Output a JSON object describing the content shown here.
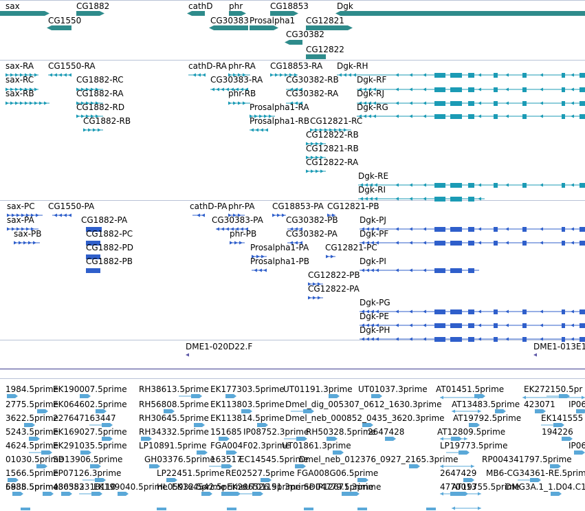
{
  "colors": {
    "gene": "#2e8b8b",
    "rna": "#1b9bb5",
    "protein": "#2f5fcb",
    "est": "#5aa8d8",
    "divider": "#b8c2d6",
    "text": "#000000"
  },
  "genes": [
    {
      "label": "sax"
    },
    {
      "label": "CG1882"
    },
    {
      "label": "cathD"
    },
    {
      "label": "phr"
    },
    {
      "label": "CG18853"
    },
    {
      "label": "Dgk"
    },
    {
      "label": "CG1550"
    },
    {
      "label": "CG30383"
    },
    {
      "label": "Prosalpha1"
    },
    {
      "label": "CG12821"
    },
    {
      "label": "CG30382"
    },
    {
      "label": "CG12822"
    }
  ],
  "transcripts": [
    {
      "label": "sax-RA"
    },
    {
      "label": "CG1550-RA"
    },
    {
      "label": "cathD-RA"
    },
    {
      "label": "phr-RA"
    },
    {
      "label": "CG18853-RA"
    },
    {
      "label": "Dgk-RH"
    },
    {
      "label": "sax-RC"
    },
    {
      "label": "CG1882-RC"
    },
    {
      "label": "CG30383-RA"
    },
    {
      "label": "CG30382-RB"
    },
    {
      "label": "Dgk-RF"
    },
    {
      "label": "sax-RB"
    },
    {
      "label": "CG1882-RA"
    },
    {
      "label": "phr-RB"
    },
    {
      "label": "CG30382-RA"
    },
    {
      "label": "Dgk-RJ"
    },
    {
      "label": "CG1882-RD"
    },
    {
      "label": "Prosalpha1-RA"
    },
    {
      "label": "Dgk-RG"
    },
    {
      "label": "CG1882-RB"
    },
    {
      "label": "Prosalpha1-RB"
    },
    {
      "label": "CG12821-RC"
    },
    {
      "label": "CG12822-RB"
    },
    {
      "label": "CG12821-RB"
    },
    {
      "label": "CG12822-RA"
    },
    {
      "label": "Dgk-RE"
    },
    {
      "label": "Dgk-RI"
    }
  ],
  "proteins": [
    {
      "label": "sax-PC"
    },
    {
      "label": "CG1550-PA"
    },
    {
      "label": "cathD-PA"
    },
    {
      "label": "phr-PA"
    },
    {
      "label": "CG18853-PA"
    },
    {
      "label": "CG12821-PB"
    },
    {
      "label": "sax-PA"
    },
    {
      "label": "CG1882-PA"
    },
    {
      "label": "CG30383-PA"
    },
    {
      "label": "CG30382-PB"
    },
    {
      "label": "Dgk-PJ"
    },
    {
      "label": "sax-PB"
    },
    {
      "label": "CG1882-PC"
    },
    {
      "label": "phr-PB"
    },
    {
      "label": "CG30382-PA"
    },
    {
      "label": "Dgk-PF"
    },
    {
      "label": "CG1882-PD"
    },
    {
      "label": "Prosalpha1-PA"
    },
    {
      "label": "CG12821-PC"
    },
    {
      "label": "CG1882-PB"
    },
    {
      "label": "Prosalpha1-PB"
    },
    {
      "label": "Dgk-PI"
    },
    {
      "label": "CG12822-PB"
    },
    {
      "label": "CG12822-PA"
    },
    {
      "label": "Dgk-PG"
    },
    {
      "label": "Dgk-PE"
    },
    {
      "label": "Dgk-PH"
    }
  ],
  "clones": [
    {
      "label": "DME1-020D22.F"
    },
    {
      "label": "DME1-013E1"
    }
  ],
  "ests": [
    {
      "label": "1984.5prime"
    },
    {
      "label": "EK190007.5prime"
    },
    {
      "label": "RH38613.5prime"
    },
    {
      "label": "EK177303.5prime"
    },
    {
      "label": "UT01191.3prime"
    },
    {
      "label": "UT01037.3prime"
    },
    {
      "label": "AT01451.5prime"
    },
    {
      "label": "EK272150.5pr"
    },
    {
      "label": "2775.5prime"
    },
    {
      "label": "EK064602.5prime"
    },
    {
      "label": "RH56808.5prime"
    },
    {
      "label": "EK113803.5prime"
    },
    {
      "label": "Dmel_dig_005307_0612_1630.3prime"
    },
    {
      "label": "AT13483.5prime"
    },
    {
      "label": "423071"
    },
    {
      "label": "IP06"
    },
    {
      "label": "3622.5prime"
    },
    {
      "label": "227647163447"
    },
    {
      "label": "RH30645.5prime"
    },
    {
      "label": "EK113814.5prime"
    },
    {
      "label": "Dmel_neb_000852_0435_3620.3prime"
    },
    {
      "label": "AT19792.5prime"
    },
    {
      "label": "EK141555"
    },
    {
      "label": "5243.5prime"
    },
    {
      "label": "EK169027.5prime"
    },
    {
      "label": "RH34332.5prime"
    },
    {
      "label": "151685"
    },
    {
      "label": "IP08752.3prime"
    },
    {
      "label": "RH50328.5prime"
    },
    {
      "label": "2647428"
    },
    {
      "label": "AT12809.5prime"
    },
    {
      "label": "194226"
    },
    {
      "label": "4624.5prime"
    },
    {
      "label": "EK291035.5prime"
    },
    {
      "label": "LP10891.5prime"
    },
    {
      "label": "FGA004F02.3prime"
    },
    {
      "label": "UT01861.3prime"
    },
    {
      "label": "LP19773.5prime"
    },
    {
      "label": "IP06"
    },
    {
      "label": "01030.5prime"
    },
    {
      "label": "SD13906.5prime"
    },
    {
      "label": "GH03376.5prime"
    },
    {
      "label": "163517"
    },
    {
      "label": "EC14545.5prime"
    },
    {
      "label": "Dmel_neb_012376_0927_2165.3prime"
    },
    {
      "label": "RP004341797.5prime"
    },
    {
      "label": "1566.5prime"
    },
    {
      "label": "EP07126.3prime"
    },
    {
      "label": "LP22451.5prime"
    },
    {
      "label": "RE02527.5prime"
    },
    {
      "label": "FGA008G06.5prime"
    },
    {
      "label": "2647429"
    },
    {
      "label": "MB6-CG34361-RE.5prime"
    },
    {
      "label": "6988.5prime"
    },
    {
      "label": "436582"
    },
    {
      "label": "EK199040.5prime"
    },
    {
      "label": "EK164542.5prime"
    },
    {
      "label": "UT01191.3prime"
    },
    {
      "label": "IP12671.3prime"
    },
    {
      "label": "4770013"
    },
    {
      "label": "DMG3A.1_1.D04.C1"
    },
    {
      "label": "5835.5prime"
    },
    {
      "label": "480353318110"
    },
    {
      "label": "HL05932.5prime"
    },
    {
      "label": "EK206526.5prime"
    },
    {
      "label": "SD04779.5prime"
    },
    {
      "label": "AT19755.5prime"
    }
  ]
}
